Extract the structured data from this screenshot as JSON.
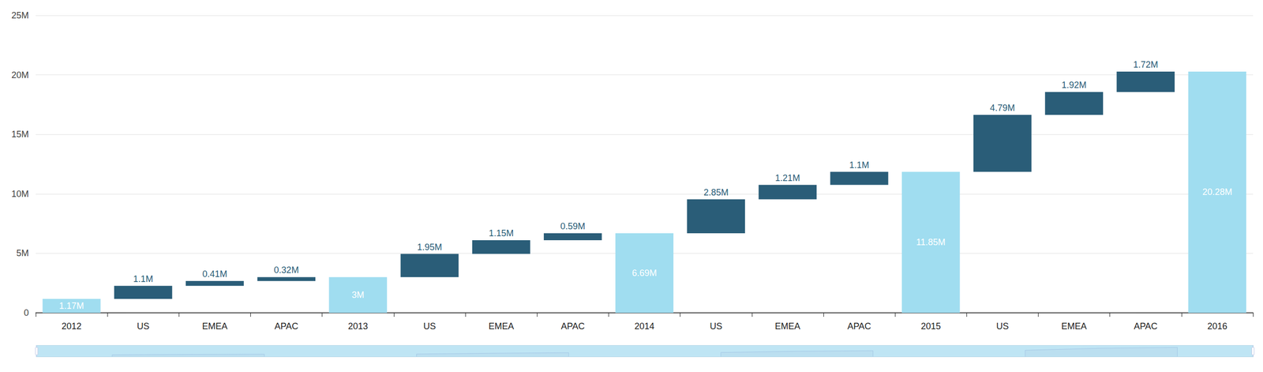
{
  "chart_data": {
    "type": "waterfall",
    "categories": [
      "2012",
      "US",
      "EMEA",
      "APAC",
      "2013",
      "US",
      "EMEA",
      "APAC",
      "2014",
      "US",
      "EMEA",
      "APAC",
      "2015",
      "US",
      "EMEA",
      "APAC",
      "2016"
    ],
    "series": [
      {
        "type": "total",
        "color": "#a0ddf0",
        "values": [
          1.17,
          null,
          null,
          null,
          3,
          null,
          null,
          null,
          6.69,
          null,
          null,
          null,
          11.85,
          null,
          null,
          null,
          20.28
        ],
        "value_labels": [
          "1.17M",
          null,
          null,
          null,
          "3M",
          null,
          null,
          null,
          "6.69M",
          null,
          null,
          null,
          "11.85M",
          null,
          null,
          null,
          "20.28M"
        ]
      },
      {
        "type": "increase",
        "color": "#2a5d78",
        "values": [
          null,
          1.1,
          0.41,
          0.32,
          null,
          1.95,
          1.15,
          0.59,
          null,
          2.85,
          1.21,
          1.1,
          null,
          4.79,
          1.92,
          1.72,
          null
        ],
        "value_labels": [
          null,
          "1.1M",
          "0.41M",
          "0.32M",
          null,
          "1.95M",
          "1.15M",
          "0.59M",
          null,
          "2.85M",
          "1.21M",
          "1.1M",
          null,
          "4.79M",
          "1.92M",
          "1.72M",
          null
        ]
      }
    ],
    "ylim": [
      0,
      25
    ],
    "yticks": [
      0,
      {
        "value": 5,
        "label": "5M"
      },
      {
        "value": 10,
        "label": "10M"
      },
      {
        "value": 15,
        "label": "15M"
      },
      {
        "value": 20,
        "label": "20M"
      },
      {
        "value": 25,
        "label": "25M"
      }
    ],
    "grid": true,
    "data_labels": true
  }
}
